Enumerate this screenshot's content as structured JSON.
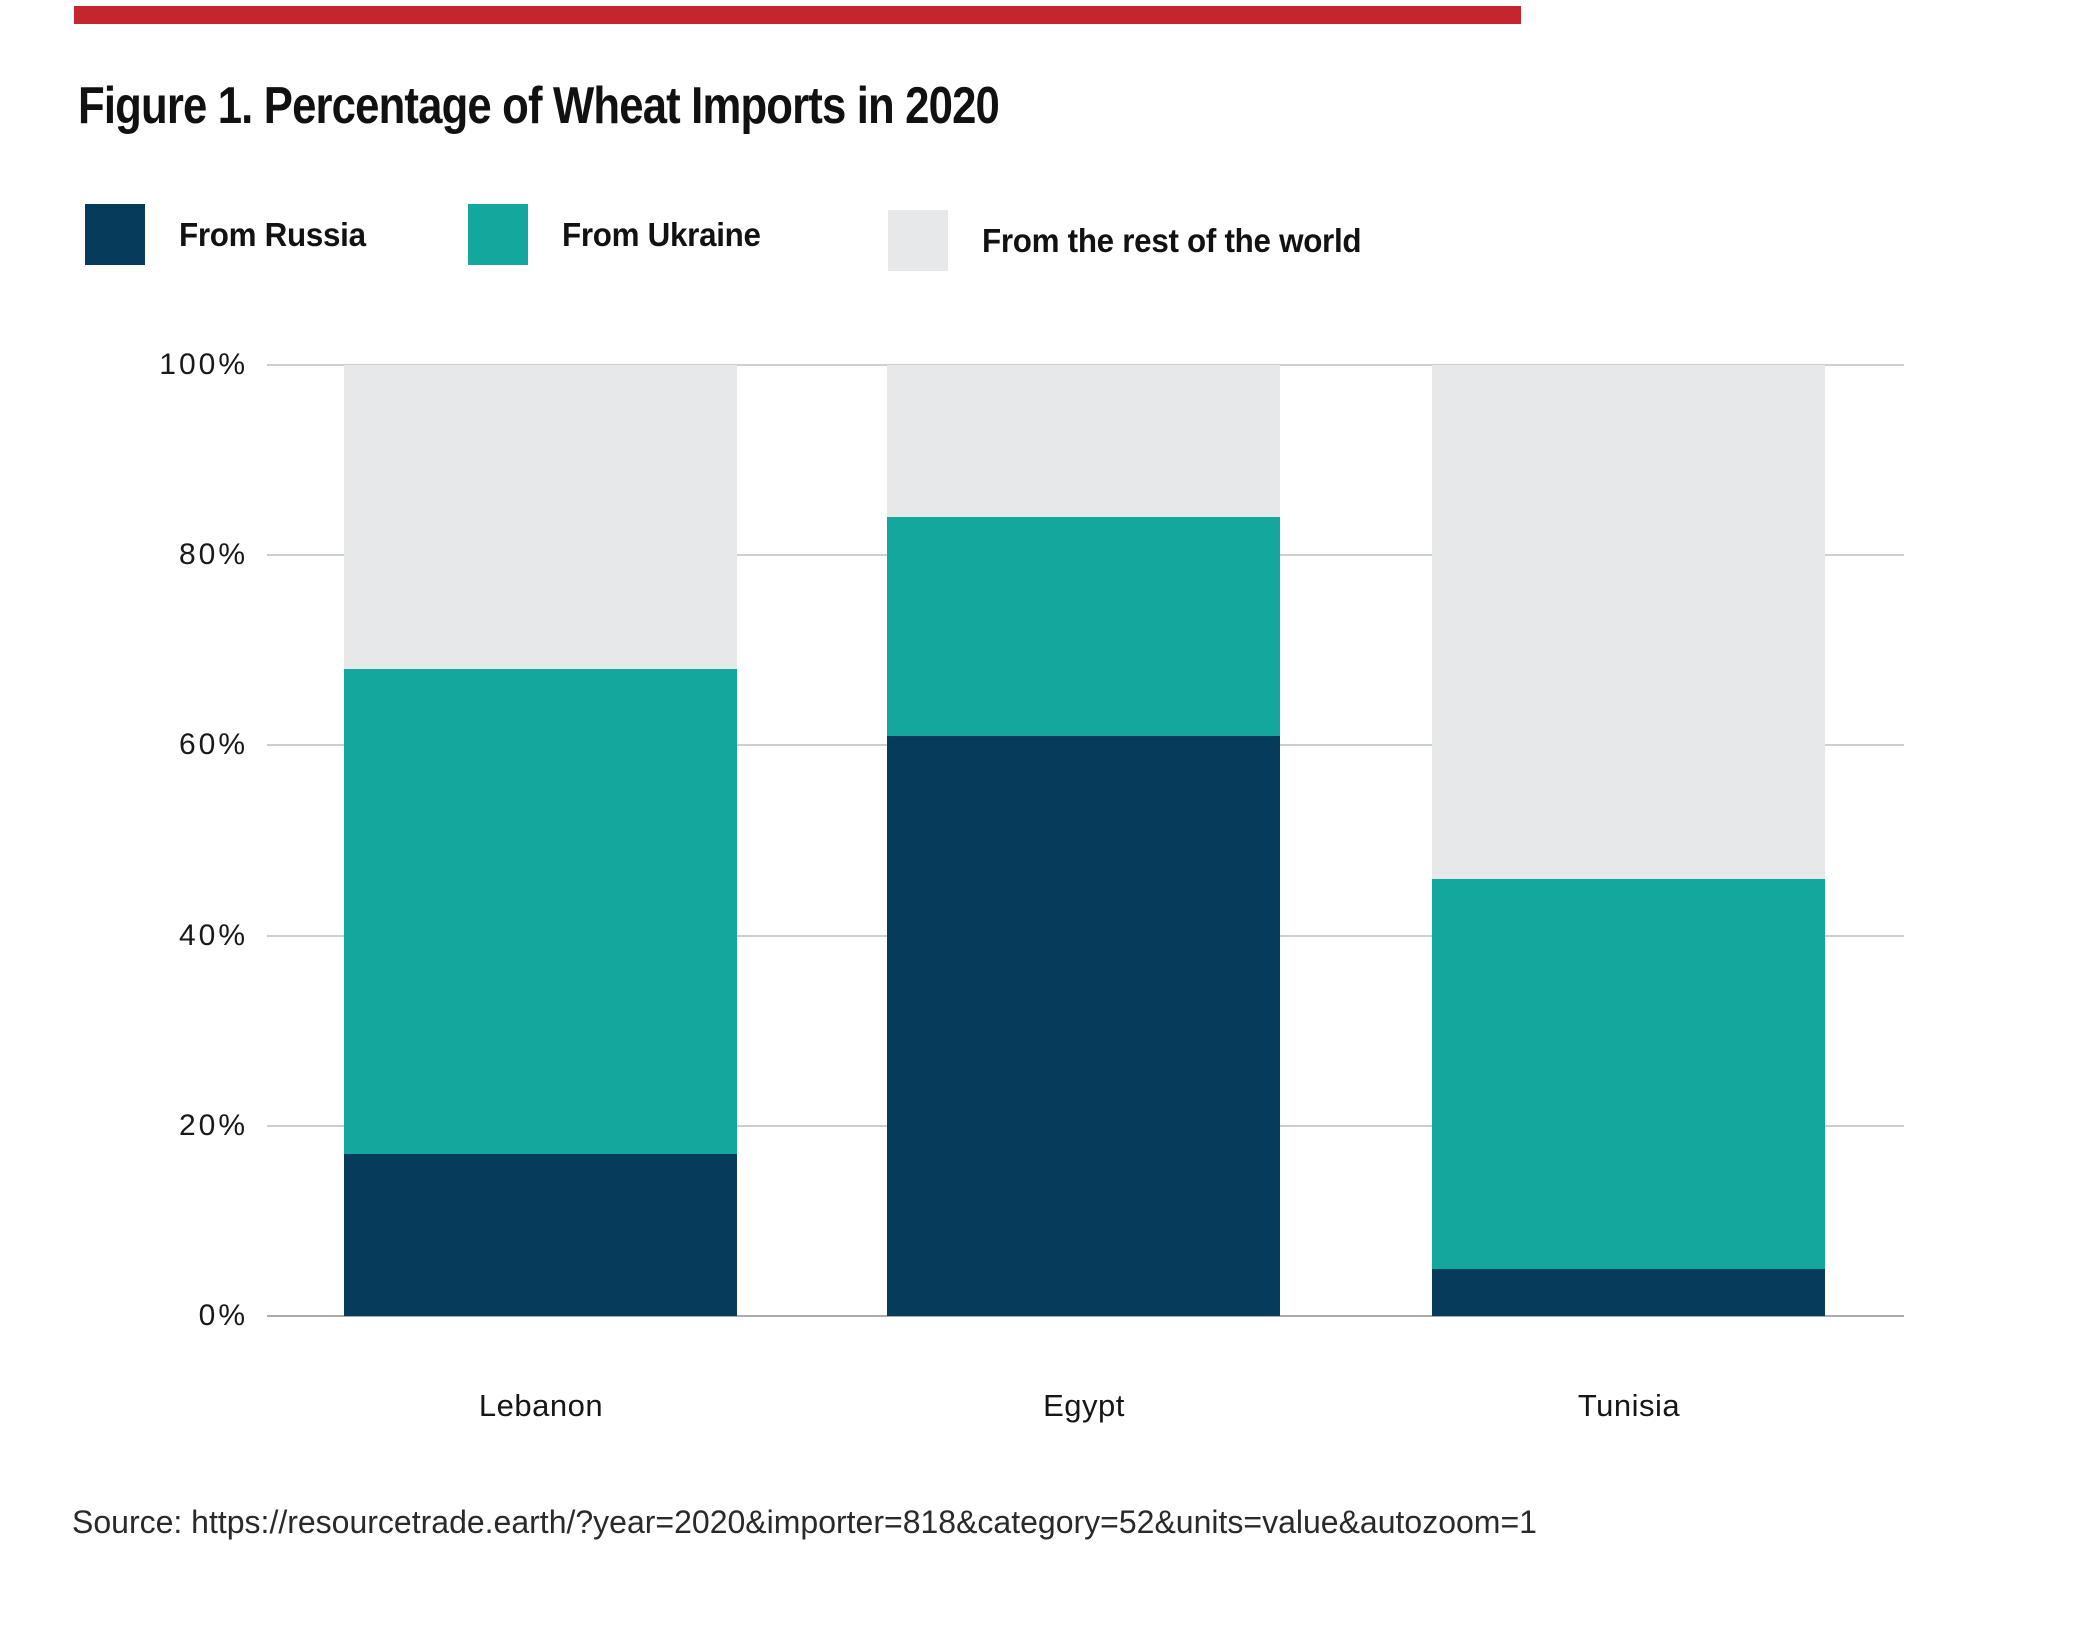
{
  "figure": {
    "title": "Figure 1. Percentage of Wheat Imports in 2020",
    "source": "Source: https://resourcetrade.earth/?year=2020&importer=818&category=52&units=value&autozoom=1",
    "accent_color": "#C5262D"
  },
  "legend": {
    "items": [
      {
        "label": "From Russia",
        "color": "#073B5C"
      },
      {
        "label": "From Ukraine",
        "color": "#14A79D"
      },
      {
        "label": "From the rest of the world",
        "color": "#E7E8EA"
      }
    ]
  },
  "chart_data": {
    "type": "bar",
    "stacked": true,
    "title": "Figure 1. Percentage of Wheat Imports in 2020",
    "categories": [
      "Lebanon",
      "Egypt",
      "Tunisia"
    ],
    "series": [
      {
        "name": "From Russia",
        "color": "#073B5C",
        "values": [
          17,
          61,
          5
        ]
      },
      {
        "name": "From Ukraine",
        "color": "#14A79D",
        "values": [
          51,
          23,
          41
        ]
      },
      {
        "name": "From the rest of the world",
        "color": "#E7E8EA",
        "values": [
          32,
          16,
          54
        ]
      }
    ],
    "xlabel": "",
    "ylabel": "",
    "ylim": [
      0,
      100
    ],
    "yticks": [
      0,
      20,
      40,
      60,
      80,
      100
    ],
    "ytick_suffix": "%",
    "grid": true,
    "legend_position": "top",
    "gridline_color": "#CDCED0",
    "axis_line_color": "#A9ABAD"
  }
}
